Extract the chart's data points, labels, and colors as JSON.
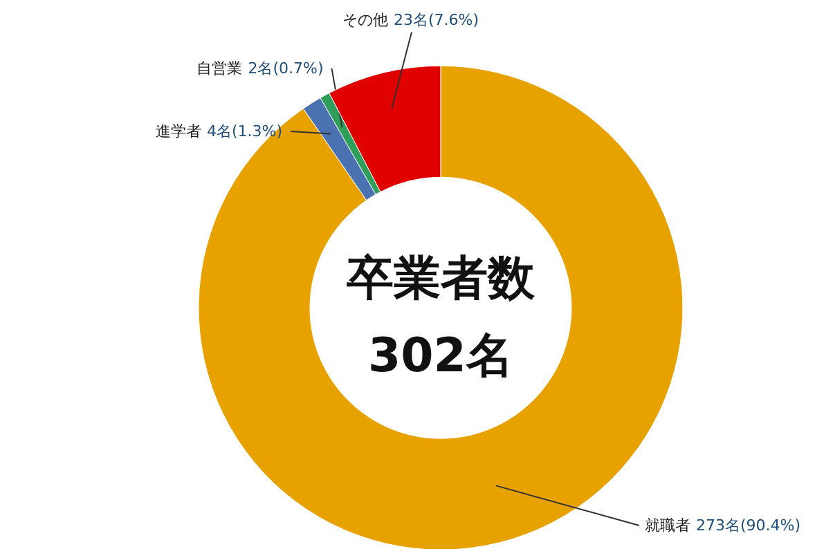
{
  "chart_data": {
    "type": "donut",
    "title": "卒業者数",
    "subtitle": "302名",
    "categories": [
      "就職者",
      "進学者",
      "自営業",
      "その他"
    ],
    "values": [
      273,
      4,
      2,
      23
    ],
    "value_labels": [
      "273名(90.4%)",
      "4名(1.3%)",
      "2名(0.7%)",
      "23名(7.6%)"
    ],
    "colors": [
      "#e8a200",
      "#4a72b0",
      "#2e9e5a",
      "#e00000"
    ]
  }
}
